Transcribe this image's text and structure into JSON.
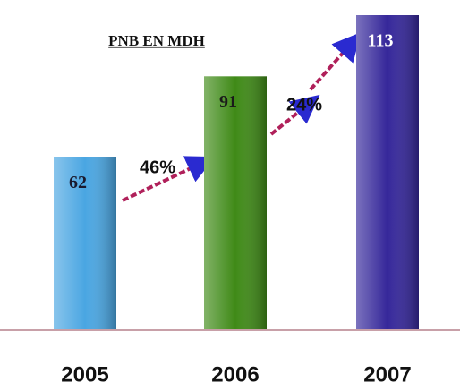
{
  "chart_data": {
    "type": "bar",
    "title": "PNB EN MDH",
    "categories": [
      "2005",
      "2006",
      "2007"
    ],
    "values": [
      62,
      91,
      113
    ],
    "colors": [
      "#4aa6e2",
      "#3f8a17",
      "#35279a"
    ],
    "label_colors": [
      "#1a1a2e",
      "#1a1a1a",
      "#ffffff"
    ],
    "annotations": [
      "46%",
      "24%"
    ]
  }
}
